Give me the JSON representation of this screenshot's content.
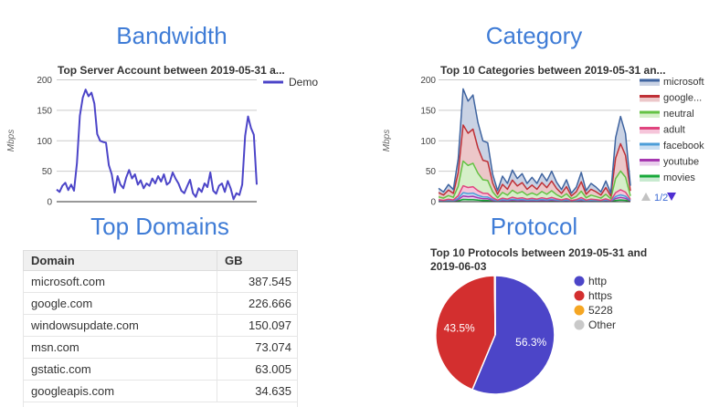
{
  "titles": {
    "bandwidth": "Bandwidth",
    "category": "Category",
    "top_domains": "Top Domains",
    "protocol": "Protocol"
  },
  "colors": {
    "panel_title": "#3f7cd6",
    "chart_title": "#333333",
    "axis_tick": "#444444",
    "axis_label": "#666666",
    "gridline": "#cccccc",
    "baseline": "#333333",
    "legend_text": "#333333",
    "pagination_up_inactive": "#c3c3c3",
    "pagination_down_active": "#4f2fd2",
    "pagination_label": "#3c6bd4",
    "pie_label_text": "#ffffff",
    "table_header_bg": "#f0f0f0",
    "table_border": "#e6e6e6"
  },
  "chart_data": [
    {
      "id": "bandwidth",
      "type": "line",
      "title": "Top Server Account between 2019-05-31 a...",
      "ylabel": "Mbps",
      "ylim": [
        0,
        200
      ],
      "yticks": [
        0,
        50,
        100,
        150,
        200
      ],
      "grid": true,
      "legend_position": "right-top",
      "series": [
        {
          "name": "Demo",
          "color": "#4c45c8",
          "values": [
            20,
            16,
            26,
            31,
            19,
            28,
            18,
            63,
            141,
            171,
            184,
            173,
            179,
            161,
            111,
            100,
            98,
            97,
            60,
            45,
            15,
            42,
            28,
            22,
            40,
            52,
            38,
            45,
            28,
            35,
            22,
            30,
            26,
            38,
            30,
            42,
            33,
            45,
            28,
            32,
            48,
            38,
            30,
            18,
            14,
            25,
            36,
            14,
            8,
            22,
            16,
            30,
            24,
            48,
            18,
            13,
            26,
            30,
            16,
            34,
            22,
            4,
            14,
            11,
            28,
            108,
            140,
            121,
            110,
            28
          ]
        }
      ]
    },
    {
      "id": "category",
      "type": "area",
      "stacked": true,
      "title": "Top 10 Categories between 2019-05-31 an...",
      "ylabel": "Mbps",
      "ylim": [
        0,
        200
      ],
      "yticks": [
        0,
        50,
        100,
        150,
        200
      ],
      "grid": true,
      "legend_position": "right",
      "legend_order_top_to_bottom": [
        "microsoft",
        "google...",
        "neutral",
        "adult",
        "facebook",
        "youtube",
        "movies"
      ],
      "legend_pagination": "1/2",
      "series": [
        {
          "name": "movies",
          "color": "#18a93a",
          "fill": "#c8ead0",
          "values": [
            0.4,
            0.3,
            0.6,
            0.4,
            1.4,
            3.7,
            3.3,
            3.5,
            2.6,
            2.0,
            1.9,
            0.9,
            0.4,
            0.8,
            0.6,
            1.0,
            0.8,
            0.9,
            0.6,
            0.8,
            0.6,
            0.9,
            0.7,
            1.0,
            0.6,
            0.4,
            0.7,
            0.3,
            0.5,
            1.0,
            0.4,
            0.6,
            0.5,
            0.3,
            0.7,
            0.3,
            2.1,
            2.8,
            2.2,
            0.5
          ]
        },
        {
          "name": "youtube",
          "color": "#a637b0",
          "fill": "#e9cdec",
          "values": [
            0.7,
            0.5,
            0.8,
            0.6,
            2.1,
            5.6,
            5.0,
            5.3,
            3.9,
            3.0,
            2.9,
            1.4,
            0.5,
            1.3,
            0.9,
            1.6,
            1.1,
            1.4,
            0.9,
            1.2,
            0.9,
            1.4,
            1.0,
            1.5,
            1.0,
            0.6,
            1.1,
            0.4,
            0.7,
            1.4,
            0.5,
            0.9,
            0.7,
            0.5,
            1.0,
            0.4,
            3.2,
            4.2,
            3.4,
            0.8
          ]
        },
        {
          "name": "facebook",
          "color": "#4d9ed8",
          "fill": "#cadff2",
          "values": [
            0.7,
            0.5,
            0.8,
            0.6,
            2.1,
            5.6,
            5.0,
            5.3,
            3.9,
            3.0,
            2.9,
            1.4,
            0.5,
            1.3,
            0.9,
            1.6,
            1.1,
            1.4,
            0.9,
            1.2,
            0.9,
            1.4,
            1.0,
            1.5,
            1.0,
            0.6,
            1.1,
            0.4,
            0.7,
            1.4,
            0.5,
            0.9,
            0.7,
            0.5,
            1.0,
            0.4,
            3.2,
            4.2,
            3.4,
            0.8
          ]
        },
        {
          "name": "adult",
          "color": "#e0447e",
          "fill": "#f6c5da",
          "values": [
            1.3,
            1.0,
            1.7,
            1.2,
            4.2,
            11.1,
            9.9,
            10.5,
            7.8,
            6.0,
            5.8,
            2.7,
            1.1,
            2.5,
            1.8,
            3.1,
            2.3,
            2.8,
            1.8,
            2.4,
            1.8,
            2.8,
            2.0,
            3.0,
            1.9,
            1.2,
            2.2,
            0.8,
            1.4,
            2.9,
            1.1,
            1.8,
            1.4,
            1.0,
            2.0,
            0.8,
            6.3,
            8.4,
            6.7,
            1.6
          ]
        },
        {
          "name": "neutral",
          "color": "#64c244",
          "fill": "#d6efc9",
          "values": [
            4.8,
            3.5,
            6.2,
            4.4,
            15.4,
            40.7,
            36.3,
            38.5,
            28.6,
            22.0,
            21.3,
            9.9,
            4.0,
            9.2,
            6.6,
            11.4,
            8.4,
            10.1,
            6.6,
            8.8,
            6.6,
            10.1,
            7.5,
            11.0,
            7.0,
            4.4,
            7.9,
            3.1,
            5.3,
            10.6,
            4.0,
            6.6,
            5.3,
            3.5,
            7.5,
            3.1,
            23.1,
            30.8,
            24.6,
            5.7
          ]
        },
        {
          "name": "google...",
          "color": "#bf3036",
          "fill": "#ecc7c9",
          "values": [
            7.0,
            5.1,
            9.0,
            6.4,
            22.4,
            59.2,
            52.8,
            56.0,
            41.6,
            32.0,
            31.0,
            14.4,
            5.8,
            13.4,
            9.6,
            16.6,
            12.2,
            14.7,
            9.6,
            12.8,
            9.6,
            14.7,
            10.9,
            16.0,
            10.2,
            6.4,
            11.5,
            4.5,
            7.7,
            15.4,
            5.8,
            9.6,
            7.7,
            5.1,
            10.9,
            4.5,
            33.6,
            44.8,
            35.8,
            8.3
          ]
        },
        {
          "name": "microsoft",
          "color": "#3f64a0",
          "fill": "#c9d2e4",
          "values": [
            7.0,
            5.1,
            9.0,
            6.4,
            22.4,
            59.2,
            52.8,
            56.0,
            41.6,
            32.0,
            31.0,
            14.4,
            5.8,
            13.4,
            9.6,
            16.6,
            12.2,
            14.7,
            9.6,
            12.8,
            9.6,
            14.7,
            10.9,
            16.0,
            10.2,
            6.4,
            11.5,
            4.5,
            7.7,
            15.4,
            5.8,
            9.6,
            7.7,
            5.1,
            10.9,
            4.5,
            33.6,
            44.8,
            35.8,
            8.3
          ]
        }
      ]
    },
    {
      "id": "protocol",
      "type": "pie",
      "title": "Top 10 Protocols between 2019-05-31 and 2019-06-03",
      "title_lines": [
        "Top 10 Protocols between 2019-05-31 and",
        "2019-06-03"
      ],
      "legend_position": "right",
      "slices": [
        {
          "label": "http",
          "pct": 56.3,
          "pct_label": "56.3%",
          "color": "#4c45c8"
        },
        {
          "label": "https",
          "pct": 43.5,
          "pct_label": "43.5%",
          "color": "#d32f2f"
        },
        {
          "label": "5228",
          "pct": 0.1,
          "color": "#f5a623"
        },
        {
          "label": "Other",
          "pct": 0.1,
          "color": "#c9c9c9"
        }
      ]
    },
    {
      "id": "top-domains",
      "type": "table",
      "columns": [
        "Domain",
        "GB"
      ],
      "rows": [
        [
          "microsoft.com",
          "387.545"
        ],
        [
          "google.com",
          "226.666"
        ],
        [
          "windowsupdate.com",
          "150.097"
        ],
        [
          "msn.com",
          "73.074"
        ],
        [
          "gstatic.com",
          "63.005"
        ],
        [
          "googleapis.com",
          "34.635"
        ]
      ]
    }
  ]
}
